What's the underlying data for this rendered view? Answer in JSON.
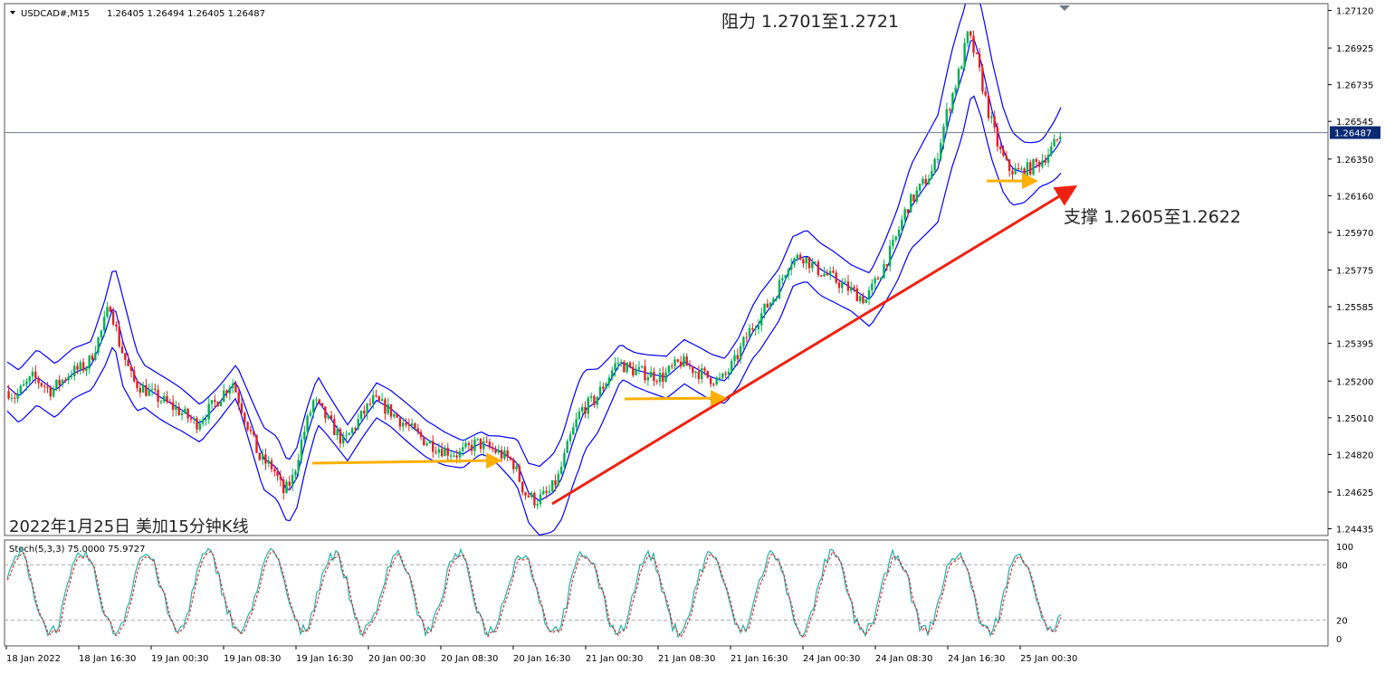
{
  "chart_data": {
    "type": "candlestick",
    "header": {
      "symbol": "USDCAD#,M15",
      "ohlc": "1.26405 1.26494 1.26405 1.26487"
    },
    "price_axis": {
      "ticks": [
        "1.27120",
        "1.26925",
        "1.26735",
        "1.26545",
        "1.26350",
        "1.26160",
        "1.25970",
        "1.25775",
        "1.25585",
        "1.25395",
        "1.25200",
        "1.25010",
        "1.24820",
        "1.24625",
        "1.24435"
      ],
      "ylim": [
        1.244,
        1.27155
      ],
      "current_price": 1.26487,
      "current_price_label": "1.26487"
    },
    "time_axis": {
      "labels": [
        "18 Jan 2022",
        "18 Jan 16:30",
        "19 Jan 00:30",
        "19 Jan 08:30",
        "19 Jan 16:30",
        "20 Jan 00:30",
        "20 Jan 08:30",
        "20 Jan 16:30",
        "21 Jan 00:30",
        "21 Jan 08:30",
        "21 Jan 16:30",
        "24 Jan 00:30",
        "24 Jan 08:30",
        "24 Jan 16:30",
        "25 Jan 00:30"
      ]
    },
    "price_path": [
      [
        0,
        1.2518
      ],
      [
        15,
        1.2512
      ],
      [
        35,
        1.2522
      ],
      [
        55,
        1.2515
      ],
      [
        75,
        1.2524
      ],
      [
        95,
        1.2528
      ],
      [
        110,
        1.2545
      ],
      [
        120,
        1.256
      ],
      [
        130,
        1.254
      ],
      [
        145,
        1.252
      ],
      [
        170,
        1.2512
      ],
      [
        195,
        1.2505
      ],
      [
        215,
        1.2498
      ],
      [
        235,
        1.2508
      ],
      [
        255,
        1.252
      ],
      [
        270,
        1.25
      ],
      [
        285,
        1.248
      ],
      [
        300,
        1.2475
      ],
      [
        312,
        1.2462
      ],
      [
        322,
        1.247
      ],
      [
        332,
        1.249
      ],
      [
        345,
        1.251
      ],
      [
        360,
        1.25
      ],
      [
        378,
        1.2488
      ],
      [
        395,
        1.25
      ],
      [
        410,
        1.251
      ],
      [
        425,
        1.2506
      ],
      [
        445,
        1.2498
      ],
      [
        465,
        1.249
      ],
      [
        485,
        1.2485
      ],
      [
        505,
        1.2482
      ],
      [
        525,
        1.2488
      ],
      [
        545,
        1.2484
      ],
      [
        565,
        1.2478
      ],
      [
        578,
        1.2462
      ],
      [
        590,
        1.2458
      ],
      [
        605,
        1.2462
      ],
      [
        615,
        1.247
      ],
      [
        628,
        1.249
      ],
      [
        640,
        1.2505
      ],
      [
        655,
        1.251
      ],
      [
        668,
        1.252
      ],
      [
        680,
        1.253
      ],
      [
        695,
        1.2526
      ],
      [
        710,
        1.2524
      ],
      [
        730,
        1.2522
      ],
      [
        750,
        1.253
      ],
      [
        765,
        1.2526
      ],
      [
        780,
        1.2522
      ],
      [
        795,
        1.252
      ],
      [
        810,
        1.253
      ],
      [
        825,
        1.2545
      ],
      [
        840,
        1.2555
      ],
      [
        855,
        1.2565
      ],
      [
        870,
        1.2582
      ],
      [
        885,
        1.2585
      ],
      [
        900,
        1.2578
      ],
      [
        915,
        1.2574
      ],
      [
        935,
        1.2568
      ],
      [
        955,
        1.2562
      ],
      [
        970,
        1.2575
      ],
      [
        985,
        1.259
      ],
      [
        1000,
        1.261
      ],
      [
        1015,
        1.262
      ],
      [
        1030,
        1.263
      ],
      [
        1045,
        1.266
      ],
      [
        1058,
        1.268
      ],
      [
        1068,
        1.27
      ],
      [
        1078,
        1.2685
      ],
      [
        1090,
        1.266
      ],
      [
        1102,
        1.264
      ],
      [
        1112,
        1.263
      ],
      [
        1125,
        1.2628
      ],
      [
        1135,
        1.263
      ],
      [
        1148,
        1.2634
      ],
      [
        1160,
        1.264
      ],
      [
        1170,
        1.2648
      ]
    ],
    "bollinger_width": [
      [
        0,
        0.0012
      ],
      [
        100,
        0.0014
      ],
      [
        135,
        0.0024
      ],
      [
        160,
        0.001
      ],
      [
        260,
        0.001
      ],
      [
        290,
        0.0016
      ],
      [
        330,
        0.0014
      ],
      [
        360,
        0.0011
      ],
      [
        420,
        0.001
      ],
      [
        470,
        0.0008
      ],
      [
        540,
        0.0007
      ],
      [
        590,
        0.0016
      ],
      [
        640,
        0.0022
      ],
      [
        690,
        0.001
      ],
      [
        760,
        0.001
      ],
      [
        800,
        0.0012
      ],
      [
        840,
        0.0016
      ],
      [
        880,
        0.0012
      ],
      [
        940,
        0.0012
      ],
      [
        980,
        0.0018
      ],
      [
        1060,
        0.003
      ],
      [
        1090,
        0.0028
      ],
      [
        1150,
        0.0012
      ],
      [
        1172,
        0.0016
      ]
    ],
    "indicator": {
      "label": "Stoch(5,3,3) 75.0000 75.9727",
      "ticks": [
        "100",
        "80",
        "20",
        "0"
      ],
      "levels": [
        80,
        20
      ]
    },
    "annotations": {
      "resistance": "阻力 1.2701至1.2721",
      "support": "支撑 1.2605至1.2622",
      "caption": "2022年1月25日 美加15分钟K线"
    },
    "colors": {
      "bull": "#00b050",
      "bear": "#e02020",
      "bands": "#0000ff",
      "trend": "#ee2211",
      "arrows": "#ffb000",
      "stoch_main": "#20b2aa",
      "stoch_signal": "#dd2222",
      "current_price_box": "#0b2a73"
    }
  }
}
